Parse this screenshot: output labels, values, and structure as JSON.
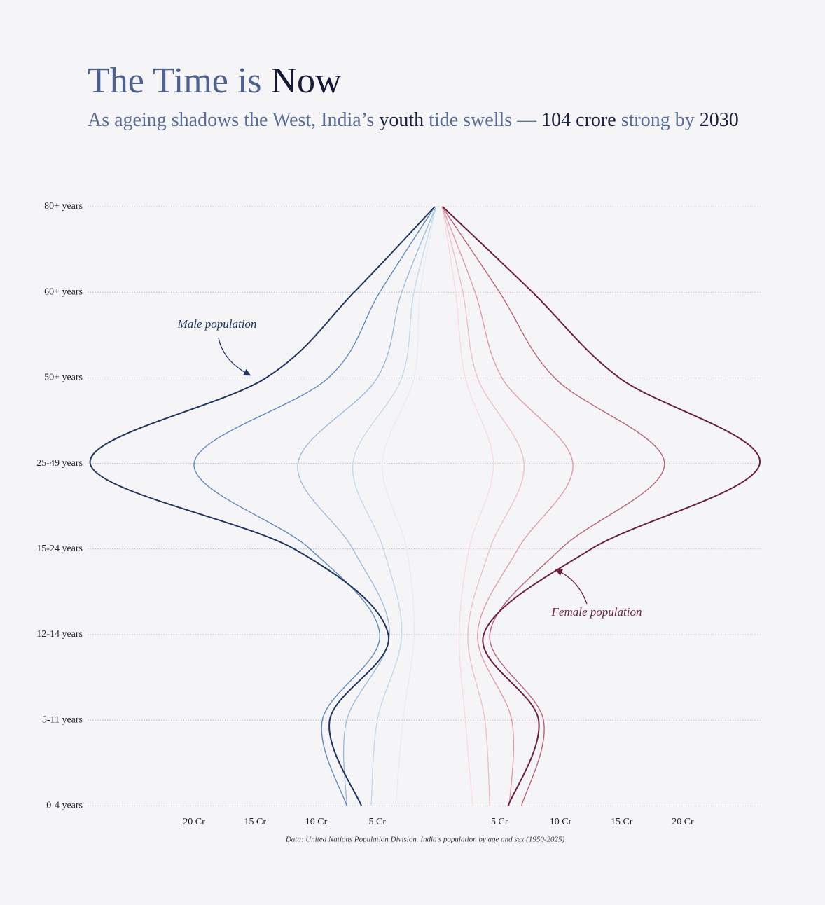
{
  "chart_data": {
    "type": "pyramid",
    "title": [
      "The Time is ",
      "Now"
    ],
    "subtitle": [
      "As ageing shadows the West, India’s ",
      "youth",
      " tide swells — ",
      "104 crore",
      " strong by ",
      "2030"
    ],
    "categories": [
      "80+ years",
      "60+ years",
      "50+ years",
      "25-49 years",
      "15-24 years",
      "12-14 years",
      "5-11 years",
      "0-4 years"
    ],
    "xlim": [
      0,
      28.6
    ],
    "xticks": [
      {
        "value": 20,
        "label": "20 Cr"
      },
      {
        "value": 15,
        "label": "15 Cr"
      },
      {
        "value": 10,
        "label": "10 Cr"
      },
      {
        "value": 5,
        "label": "5 Cr"
      }
    ],
    "male_series": [
      {
        "color": "#e3ecf6",
        "values": [
          0.2,
          1.5,
          2.0,
          4.6,
          2.6,
          2.0,
          2.9,
          3.5
        ]
      },
      {
        "color": "#c7d9ec",
        "values": [
          0.2,
          2.0,
          3.0,
          7.0,
          4.5,
          3.0,
          5.0,
          5.5
        ]
      },
      {
        "color": "#9dbcdd",
        "values": [
          0.2,
          3.0,
          5.0,
          11.5,
          7.0,
          4.0,
          7.5,
          7.5
        ]
      },
      {
        "color": "#6089bd",
        "values": [
          0.3,
          4.8,
          9.0,
          20,
          10.5,
          4.8,
          9.5,
          7.5
        ]
      },
      {
        "color": "#1f3560",
        "values": [
          0.3,
          6.9,
          14.1,
          28.5,
          11.8,
          4.1,
          8.9,
          6.3
        ]
      }
    ],
    "female_series": [
      {
        "color": "#f6dde2",
        "values": [
          0.3,
          1.4,
          2.2,
          4.5,
          2.5,
          1.7,
          2.2,
          2.8
        ]
      },
      {
        "color": "#eec0ca",
        "values": [
          0.3,
          2.0,
          3.2,
          7.0,
          4.2,
          2.4,
          3.8,
          4.2
        ]
      },
      {
        "color": "#e09aa9",
        "values": [
          0.3,
          3.0,
          5.2,
          11.0,
          6.5,
          3.2,
          6.0,
          5.8
        ]
      },
      {
        "color": "#b96178",
        "values": [
          0.3,
          5.0,
          9.5,
          18.5,
          10.0,
          4.2,
          8.6,
          6.8
        ]
      },
      {
        "color": "#6e1f3f",
        "values": [
          0.34,
          7.7,
          14.8,
          26.3,
          12.5,
          3.7,
          8.2,
          5.7
        ]
      }
    ],
    "annotations": [
      "Male population",
      "Female population"
    ],
    "source": "Data: United Nations Population Division. India's population by age and sex (1950-2025)",
    "grid": true
  }
}
